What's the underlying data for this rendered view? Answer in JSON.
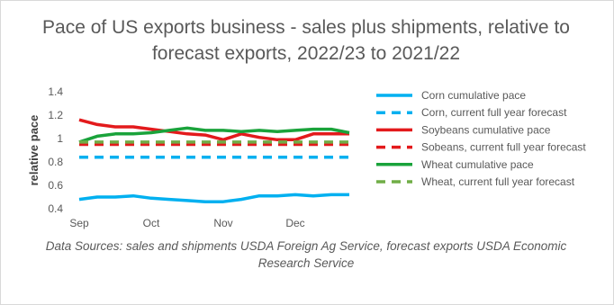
{
  "chart_data": {
    "type": "line",
    "title": "Pace of US exports business - sales plus shipments, relative to forecast  exports, 2022/23 to 2021/22",
    "xlabel": "",
    "ylabel": "relative pace",
    "x_tick_labels": [
      "Sep",
      "Oct",
      "Nov",
      "Dec"
    ],
    "y_ticks": [
      "0.4",
      "0.6",
      "0.8",
      "1",
      "1.2",
      "1.4"
    ],
    "ylim": [
      0.4,
      1.4
    ],
    "grid": false,
    "legend_position": "right",
    "x": [
      1,
      2,
      3,
      4,
      5,
      6,
      7,
      8,
      9,
      10,
      11,
      12,
      13,
      14,
      15,
      16
    ],
    "series": [
      {
        "name": "Corn cumulative pace",
        "color": "#00b0f0",
        "dash": "solid",
        "values": [
          0.48,
          0.5,
          0.5,
          0.51,
          0.49,
          0.48,
          0.47,
          0.46,
          0.46,
          0.48,
          0.51,
          0.51,
          0.52,
          0.51,
          0.52,
          0.52
        ]
      },
      {
        "name": "Corn, current full year forecast",
        "color": "#00b0f0",
        "dash": "dashed",
        "values": [
          0.84,
          0.84,
          0.84,
          0.84,
          0.84,
          0.84,
          0.84,
          0.84,
          0.84,
          0.84,
          0.84,
          0.84,
          0.84,
          0.84,
          0.84,
          0.84
        ]
      },
      {
        "name": "Soybeans cumulative pace",
        "color": "#e31a1c",
        "dash": "solid",
        "values": [
          1.16,
          1.12,
          1.1,
          1.1,
          1.08,
          1.06,
          1.04,
          1.03,
          0.99,
          1.04,
          1.01,
          0.99,
          0.99,
          1.04,
          1.04,
          1.04
        ]
      },
      {
        "name": "Sobeans, current full year forecast",
        "color": "#e31a1c",
        "dash": "dashed",
        "values": [
          0.95,
          0.95,
          0.95,
          0.95,
          0.95,
          0.95,
          0.95,
          0.95,
          0.95,
          0.95,
          0.95,
          0.95,
          0.95,
          0.95,
          0.95,
          0.95
        ]
      },
      {
        "name": "Wheat cumulative pace",
        "color": "#1aa33b",
        "dash": "solid",
        "values": [
          0.97,
          1.02,
          1.04,
          1.04,
          1.05,
          1.07,
          1.09,
          1.07,
          1.07,
          1.06,
          1.07,
          1.06,
          1.07,
          1.08,
          1.08,
          1.05
        ]
      },
      {
        "name": "Wheat, current full year forecast",
        "color": "#70ad47",
        "dash": "dashed",
        "values": [
          0.97,
          0.97,
          0.97,
          0.97,
          0.97,
          0.97,
          0.97,
          0.97,
          0.97,
          0.97,
          0.97,
          0.97,
          0.97,
          0.97,
          0.97,
          0.97
        ]
      }
    ]
  },
  "source_note": "Data Sources:  sales and shipments USDA Foreign Ag Service, forecast exports USDA Economic Research Service"
}
